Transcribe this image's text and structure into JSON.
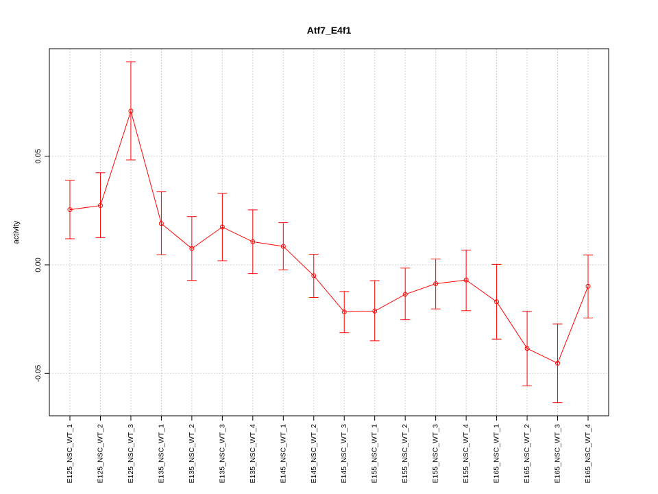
{
  "chart_data": {
    "type": "line",
    "title": "Atf7_E4f1",
    "xlabel": "",
    "ylabel": "activity",
    "ylim": [
      -0.0695,
      0.0995
    ],
    "yticks": [
      -0.05,
      0.0,
      0.05
    ],
    "ytick_labels": [
      "-0.05",
      "0.00",
      "0.05"
    ],
    "grid": true,
    "legend": "none",
    "color": "#ff0000",
    "categories": [
      "E125_NSC_WT_1",
      "E125_NSC_WT_2",
      "E125_NSC_WT_3",
      "E135_NSC_WT_1",
      "E135_NSC_WT_2",
      "E135_NSC_WT_3",
      "E135_NSC_WT_4",
      "E145_NSC_WT_1",
      "E145_NSC_WT_2",
      "E145_NSC_WT_3",
      "E155_NSC_WT_1",
      "E155_NSC_WT_2",
      "E155_NSC_WT_3",
      "E155_NSC_WT_4",
      "E165_NSC_WT_1",
      "E165_NSC_WT_2",
      "E165_NSC_WT_3",
      "E165_NSC_WT_4"
    ],
    "values": [
      0.0254,
      0.0273,
      0.0708,
      0.019,
      0.0075,
      0.0174,
      0.0106,
      0.0085,
      -0.005,
      -0.0217,
      -0.0213,
      -0.0136,
      -0.0087,
      -0.007,
      -0.017,
      -0.0385,
      -0.0453,
      -0.0099
    ],
    "upper": [
      0.0389,
      0.0424,
      0.0935,
      0.0336,
      0.0222,
      0.0329,
      0.0253,
      0.0194,
      0.0049,
      -0.0123,
      -0.0073,
      -0.0015,
      0.0027,
      0.0068,
      0.0002,
      -0.0214,
      -0.0272,
      0.0045
    ],
    "lower": [
      0.012,
      0.0125,
      0.0483,
      0.0046,
      -0.0072,
      0.0019,
      -0.004,
      -0.0023,
      -0.015,
      -0.0312,
      -0.035,
      -0.0252,
      -0.0203,
      -0.0211,
      -0.0342,
      -0.0557,
      -0.0634,
      -0.0245
    ]
  }
}
